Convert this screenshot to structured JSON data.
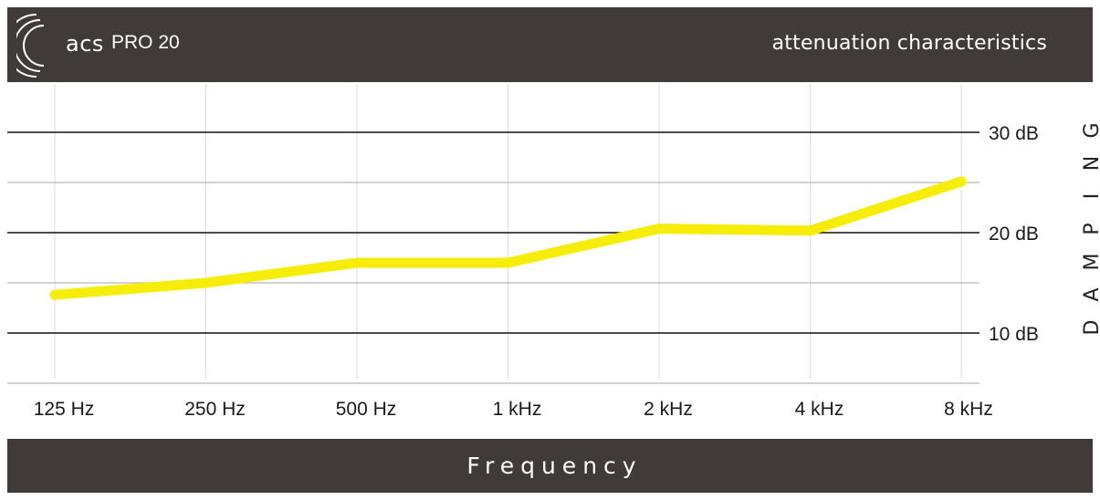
{
  "header": {
    "brand": "acs",
    "model": "PRO 20",
    "subtitle": "attenuation characteristics",
    "logo_icon": "sound-wave-arcs-icon"
  },
  "footer": {
    "label": "Frequency"
  },
  "colors": {
    "bar_background": "#403b38",
    "line": "#f6ee0a",
    "major_grid": "#111111",
    "minor_grid": "#b8b8b8",
    "vertical_grid": "#dddddd"
  },
  "chart_data": {
    "type": "line",
    "title": "attenuation characteristics",
    "xlabel": "Frequency",
    "ylabel": "DAMPING",
    "categories": [
      "125 Hz",
      "250 Hz",
      "500 Hz",
      "1 kHz",
      "2 kHz",
      "4 kHz",
      "8 kHz"
    ],
    "series": [
      {
        "values": [
          13.8,
          15.0,
          17.0,
          17.0,
          20.4,
          20.2,
          25.1
        ]
      }
    ],
    "ylim": [
      5,
      33
    ],
    "major_ticks": [
      30,
      20,
      10
    ],
    "tick_labels": [
      "30 dB",
      "20 dB",
      "10 dB"
    ],
    "minor_gridlines": [
      25,
      15,
      5
    ],
    "grid": true
  }
}
